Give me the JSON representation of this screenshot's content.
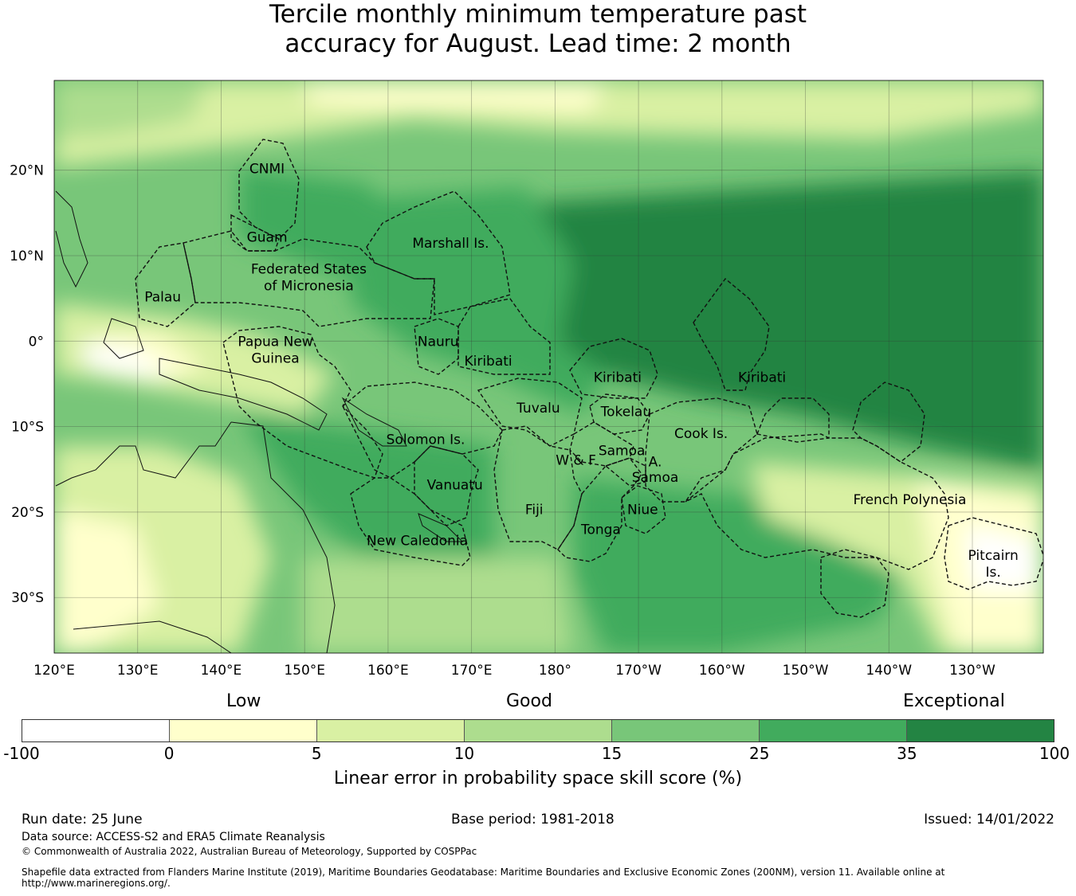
{
  "title": {
    "line1": "Tercile monthly minimum temperature past",
    "line2": "accuracy for August. Lead time: 2 month"
  },
  "map": {
    "lon_labels": [
      "120°E",
      "130°E",
      "140°E",
      "150°E",
      "160°E",
      "170°E",
      "180°",
      "170°W",
      "160°W",
      "150°W",
      "140°W",
      "130°W"
    ],
    "lon_values": [
      120,
      130,
      140,
      150,
      160,
      170,
      180,
      190,
      200,
      210,
      220,
      230
    ],
    "lat_labels": [
      "20°N",
      "10°N",
      "0°",
      "10°S",
      "20°S",
      "30°S"
    ],
    "lat_values": [
      20,
      10,
      0,
      -10,
      -20,
      -30
    ],
    "extent": {
      "lon_min": 120,
      "lon_max": 238.5,
      "lat_min": -36.5,
      "lat_max": 30.5
    },
    "regions": [
      {
        "name": "CNMI",
        "lines": [
          "CNMI"
        ],
        "lon": 145.5,
        "lat": 20.2
      },
      {
        "name": "Guam",
        "lines": [
          "Guam"
        ],
        "lon": 145.5,
        "lat": 12.2
      },
      {
        "name": "Palau",
        "lines": [
          "Palau"
        ],
        "lon": 133,
        "lat": 5.2
      },
      {
        "name": "Federated States of Micronesia",
        "lines": [
          "Federated States",
          "of Micronesia"
        ],
        "lon": 150.5,
        "lat": 7.5
      },
      {
        "name": "Marshall Is.",
        "lines": [
          "Marshall Is."
        ],
        "lon": 167.5,
        "lat": 11.5
      },
      {
        "name": "Nauru",
        "lines": [
          "Nauru"
        ],
        "lon": 166,
        "lat": 0
      },
      {
        "name": "Kiribati-Gilbert",
        "lines": [
          "Kiribati"
        ],
        "lon": 172,
        "lat": -2.3
      },
      {
        "name": "Kiribati-Phoenix",
        "lines": [
          "Kiribati"
        ],
        "lon": 187.5,
        "lat": -4.2
      },
      {
        "name": "Kiribati-Line",
        "lines": [
          "Kiribati"
        ],
        "lon": 204.8,
        "lat": -4.2
      },
      {
        "name": "Papua New Guinea",
        "lines": [
          "Papua New",
          "Guinea"
        ],
        "lon": 146.5,
        "lat": -1
      },
      {
        "name": "Solomon Is.",
        "lines": [
          "Solomon Is."
        ],
        "lon": 164.5,
        "lat": -11.5
      },
      {
        "name": "Tuvalu",
        "lines": [
          "Tuvalu"
        ],
        "lon": 178,
        "lat": -7.8
      },
      {
        "name": "Tokelau",
        "lines": [
          "Tokelau"
        ],
        "lon": 188.5,
        "lat": -8.2
      },
      {
        "name": "Cook Is.",
        "lines": [
          "Cook Is."
        ],
        "lon": 197.5,
        "lat": -10.8
      },
      {
        "name": "Samoa",
        "lines": [
          "Samoa"
        ],
        "lon": 188,
        "lat": -12.8
      },
      {
        "name": "W & F",
        "lines": [
          "W & F"
        ],
        "lon": 182.5,
        "lat": -13.9
      },
      {
        "name": "A. Samoa",
        "lines": [
          "A."
        ],
        "lon": 192,
        "lat": -14.1
      },
      {
        "name": "A. Samoa line2",
        "lines": [
          "Samoa"
        ],
        "lon": 192,
        "lat": -15.9
      },
      {
        "name": "Vanuatu",
        "lines": [
          "Vanuatu"
        ],
        "lon": 168,
        "lat": -16.8
      },
      {
        "name": "Fiji",
        "lines": [
          "Fiji"
        ],
        "lon": 177.5,
        "lat": -19.7
      },
      {
        "name": "Niue",
        "lines": [
          "Niue"
        ],
        "lon": 190.5,
        "lat": -19.7
      },
      {
        "name": "Tonga",
        "lines": [
          "Tonga"
        ],
        "lon": 185.5,
        "lat": -22
      },
      {
        "name": "New Caledonia",
        "lines": [
          "New Caledonia"
        ],
        "lon": 163.5,
        "lat": -23.3
      },
      {
        "name": "French Polynesia",
        "lines": [
          "French Polynesia"
        ],
        "lon": 222.5,
        "lat": -18.5
      },
      {
        "name": "Pitcairn Is.",
        "lines": [
          "Pitcairn",
          "Is."
        ],
        "lon": 232.5,
        "lat": -26
      }
    ]
  },
  "legend": {
    "category_labels": [
      "Low",
      "Good",
      "Exceptional"
    ],
    "ticks": [
      "-100",
      "0",
      "5",
      "10",
      "15",
      "25",
      "35",
      "100"
    ],
    "colors": [
      "#ffffff",
      "#ffffcc",
      "#d9f0a3",
      "#addd8e",
      "#78c679",
      "#41ab5d",
      "#238443"
    ],
    "title": "Linear error in probability space skill score (%)"
  },
  "footer": {
    "run_date": "Run date: 25 June",
    "base_period": "Base period: 1981-2018",
    "issued": "Issued: 14/01/2022",
    "data_source": "Data source: ACCESS-S2 and ERA5 Climate Reanalysis",
    "copyright": "© Commonwealth of Australia 2022, Australian Bureau of Meteorology, Supported by COSPPac",
    "shapefile": "Shapefile data extracted from Flanders Marine Institute (2019), Maritime Boundaries Geodatabase: Maritime Boundaries and Exclusive Economic Zones (200NM), version 11. Available online at http://www.marineregions.org/."
  }
}
